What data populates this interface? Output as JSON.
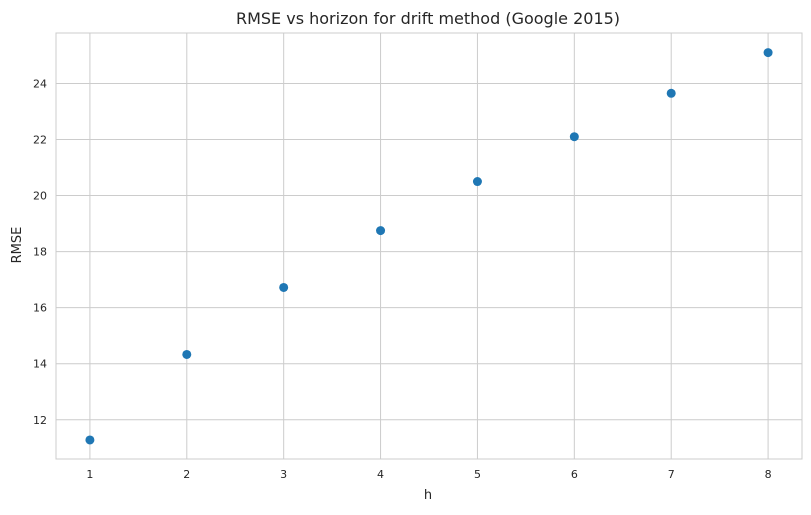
{
  "chart_data": {
    "type": "scatter",
    "title": "RMSE vs horizon for drift method (Google 2015)",
    "xlabel": "h",
    "ylabel": "RMSE",
    "x": [
      1,
      2,
      3,
      4,
      5,
      6,
      7,
      8
    ],
    "y": [
      11.28,
      14.33,
      16.72,
      18.75,
      20.5,
      22.1,
      23.65,
      25.1
    ],
    "xlim": [
      0.65,
      8.35
    ],
    "ylim": [
      10.6,
      25.8
    ],
    "xticks": [
      1,
      2,
      3,
      4,
      5,
      6,
      7,
      8
    ],
    "yticks": [
      12,
      14,
      16,
      18,
      20,
      22,
      24
    ],
    "grid": true,
    "marker_color": "#1f77b4",
    "grid_color": "#cccccc",
    "spine_color": "#cccccc"
  }
}
